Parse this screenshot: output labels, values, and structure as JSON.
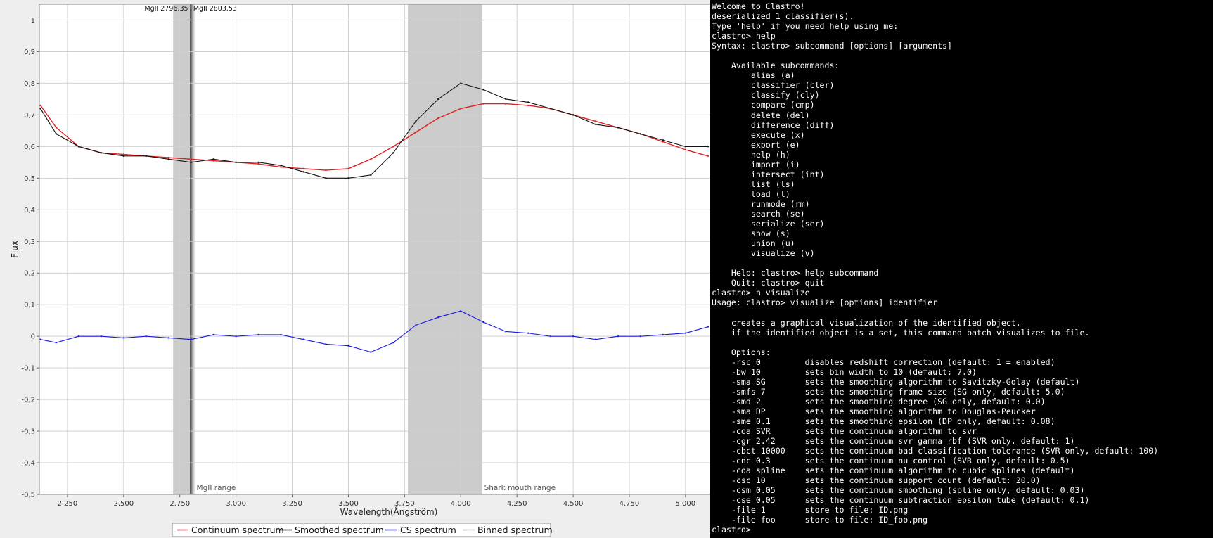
{
  "chart_data": {
    "type": "line",
    "xlabel": "Wavelength(Ångström)",
    "ylabel": "Flux",
    "xlim": [
      2125,
      5110
    ],
    "ylim": [
      -0.5,
      1.05
    ],
    "xticks": [
      2250,
      2500,
      2750,
      3000,
      3250,
      3500,
      3750,
      4000,
      4250,
      4500,
      4750,
      5000
    ],
    "xtick_labels": [
      "2.250",
      "2.500",
      "2.750",
      "3.000",
      "3.250",
      "3.500",
      "3.750",
      "4.000",
      "4.250",
      "4.500",
      "4.750",
      "5.000"
    ],
    "yticks": [
      -0.5,
      -0.4,
      -0.3,
      -0.2,
      -0.1,
      0,
      0.1,
      0.2,
      0.3,
      0.4,
      0.5,
      0.6,
      0.7,
      0.8,
      0.9,
      1
    ],
    "ytick_labels": [
      "-0,5",
      "-0,4",
      "-0,3",
      "-0,2",
      "-0,1",
      "0",
      "0,1",
      "0,2",
      "0,3",
      "0,4",
      "0,5",
      "0,6",
      "0,7",
      "0,8",
      "0,9",
      "1"
    ],
    "grid": true,
    "legend_position": "bottom-center",
    "shaded_ranges": [
      {
        "label": "MgII range",
        "from": 2720,
        "to": 2815
      },
      {
        "label": "Shark mouth range",
        "from": 3765,
        "to": 4095
      }
    ],
    "marker_lines": [
      {
        "label": "MgII 2796.35",
        "x": 2796.35
      },
      {
        "label": "MgII 2803.53",
        "x": 2803.53
      }
    ],
    "series": [
      {
        "name": "Continuum spectrum",
        "color": "#e02020",
        "x": [
          2130,
          2200,
          2300,
          2400,
          2500,
          2600,
          2700,
          2800,
          2900,
          3000,
          3100,
          3200,
          3300,
          3400,
          3500,
          3600,
          3700,
          3800,
          3900,
          4000,
          4100,
          4200,
          4300,
          4400,
          4500,
          4600,
          4700,
          4800,
          4900,
          5000,
          5100
        ],
        "values": [
          0.73,
          0.66,
          0.6,
          0.58,
          0.575,
          0.57,
          0.565,
          0.56,
          0.555,
          0.55,
          0.545,
          0.535,
          0.53,
          0.525,
          0.53,
          0.56,
          0.6,
          0.645,
          0.69,
          0.72,
          0.735,
          0.735,
          0.73,
          0.72,
          0.7,
          0.68,
          0.66,
          0.64,
          0.615,
          0.59,
          0.57
        ]
      },
      {
        "name": "Smoothed spectrum",
        "color": "#111111",
        "x": [
          2130,
          2200,
          2300,
          2400,
          2500,
          2600,
          2700,
          2800,
          2900,
          3000,
          3100,
          3200,
          3300,
          3400,
          3500,
          3600,
          3700,
          3800,
          3900,
          4000,
          4100,
          4200,
          4300,
          4400,
          4500,
          4600,
          4700,
          4800,
          4900,
          5000,
          5100
        ],
        "values": [
          0.72,
          0.64,
          0.6,
          0.58,
          0.57,
          0.57,
          0.56,
          0.55,
          0.56,
          0.55,
          0.55,
          0.54,
          0.52,
          0.5,
          0.5,
          0.51,
          0.58,
          0.68,
          0.75,
          0.8,
          0.78,
          0.75,
          0.74,
          0.72,
          0.7,
          0.67,
          0.66,
          0.64,
          0.62,
          0.6,
          0.6
        ]
      },
      {
        "name": "CS spectrum",
        "color": "#1a1ae6",
        "x": [
          2130,
          2200,
          2300,
          2400,
          2500,
          2600,
          2700,
          2800,
          2900,
          3000,
          3100,
          3200,
          3300,
          3400,
          3500,
          3600,
          3700,
          3800,
          3900,
          4000,
          4100,
          4200,
          4300,
          4400,
          4500,
          4600,
          4700,
          4800,
          4900,
          5000,
          5100
        ],
        "values": [
          -0.01,
          -0.02,
          0.0,
          0.0,
          -0.005,
          0.0,
          -0.005,
          -0.01,
          0.005,
          0.0,
          0.005,
          0.005,
          -0.01,
          -0.025,
          -0.03,
          -0.05,
          -0.02,
          0.035,
          0.06,
          0.08,
          0.045,
          0.015,
          0.01,
          0.0,
          0.0,
          -0.01,
          0.0,
          0.0,
          0.005,
          0.01,
          0.03
        ]
      },
      {
        "name": "Binned spectrum",
        "color": "#bbbbbb",
        "x": [],
        "values": []
      }
    ]
  },
  "terminal": {
    "lines": [
      "Welcome to Clastro!",
      "deserialized 1 classifier(s).",
      "Type 'help' if you need help using me:",
      "clastro> help",
      "Syntax: clastro> subcommand [options] [arguments]",
      "",
      "    Available subcommands:",
      "        alias (a)",
      "        classifier (cler)",
      "        classify (cly)",
      "        compare (cmp)",
      "        delete (del)",
      "        difference (diff)",
      "        execute (x)",
      "        export (e)",
      "        help (h)",
      "        import (i)",
      "        intersect (int)",
      "        list (ls)",
      "        load (l)",
      "        runmode (rm)",
      "        search (se)",
      "        serialize (ser)",
      "        show (s)",
      "        union (u)",
      "        visualize (v)",
      "",
      "    Help: clastro> help subcommand",
      "    Quit: clastro> quit",
      "clastro> h visualize",
      "Usage: clastro> visualize [options] identifier",
      "",
      "    creates a graphical visualization of the identified object.",
      "    if the identified object is a set, this command batch visualizes to file.",
      "",
      "    Options:",
      "    -rsc 0         disables redshift correction (default: 1 = enabled)",
      "    -bw 10         sets bin width to 10 (default: 7.0)",
      "    -sma SG        sets the smoothing algorithm to Savitzky-Golay (default)",
      "    -smfs 7        sets the smoothing frame size (SG only, default: 5.0)",
      "    -smd 2         sets the smoothing degree (SG only, default: 0.0)",
      "    -sma DP        sets the smoothing algorithm to Douglas-Peucker",
      "    -sme 0.1       sets the smoothing epsilon (DP only, default: 0.08)",
      "    -coa SVR       sets the continuum algorithm to svr",
      "    -cgr 2.42      sets the continuum svr gamma rbf (SVR only, default: 1)",
      "    -cbct 10000    sets the continuum bad classification tolerance (SVR only, default: 100)",
      "    -cnc 0.3       sets the continuum nu control (SVR only, default: 0.5)",
      "    -coa spline    sets the continuum algorithm to cubic splines (default)",
      "    -csc 10        sets the continuum support count (default: 20.0)",
      "    -csm 0.05      sets the continuum smoothing (spline only, default: 0.03)",
      "    -cse 0.05      sets the continuum subtraction epsilon tube (default: 0.1)",
      "    -file 1        store to file: ID.png",
      "    -file foo      store to file: ID_foo.png",
      "clastro>"
    ]
  }
}
